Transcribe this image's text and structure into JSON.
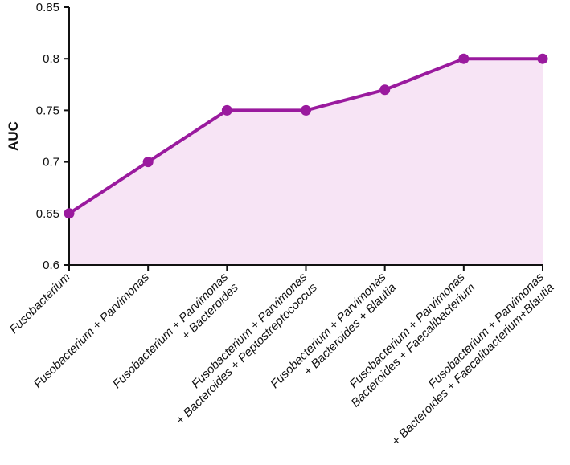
{
  "chart_data": {
    "type": "area",
    "title": "",
    "xlabel": "",
    "ylabel": "AUC",
    "ylim": [
      0.6,
      0.85
    ],
    "y_ticks": [
      "0.6",
      "0.65",
      "0.7",
      "0.75",
      "0.8",
      "0.85"
    ],
    "grid": false,
    "categories": [
      [
        "Fusobacterium"
      ],
      [
        "Fusobacterium + Parvimonas"
      ],
      [
        "Fusobacterium + Parvimonas",
        "+ Bacteroides"
      ],
      [
        "Fusobacterium + Parvimonas",
        "+ Bacteroides + Peptostreptococcus"
      ],
      [
        "Fusobacterium + Parvimonas",
        "+ Bacteroides + Blautia"
      ],
      [
        "Fusobacterium + Parvimonas",
        "Bacteroides + Faecalibacterium"
      ],
      [
        "Fusobacterium + Parvimonas",
        "+ Bacteroides + Faecalibacterium+Blautia"
      ]
    ],
    "values": [
      0.65,
      0.7,
      0.75,
      0.75,
      0.77,
      0.8,
      0.8
    ],
    "colors": {
      "line": "#9a1a9e",
      "fill": "#f7e4f5",
      "axis": "#111111"
    }
  }
}
